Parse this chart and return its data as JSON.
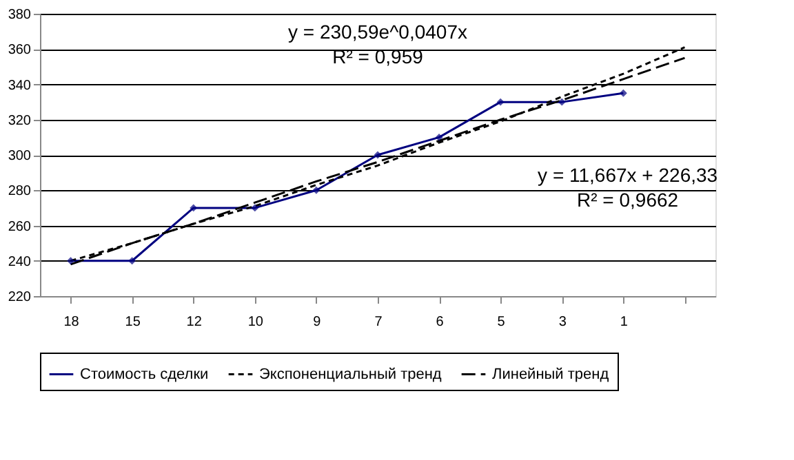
{
  "chart_data": {
    "type": "line",
    "categories": [
      "18",
      "15",
      "12",
      "10",
      "9",
      "7",
      "6",
      "5",
      "3",
      "1",
      null
    ],
    "series": [
      {
        "name": "Стоимость сделки",
        "color": "#000080",
        "values": [
          240,
          240,
          270,
          270,
          280,
          300,
          310,
          330,
          330,
          335,
          null
        ],
        "marker": "diamond",
        "line_style": "solid"
      },
      {
        "name": "Экспоненциальный тренд",
        "color": "#000000",
        "values": [
          240,
          250,
          261,
          271,
          283,
          294,
          307,
          319,
          333,
          346,
          361
        ],
        "marker": "none",
        "line_style": "dotted"
      },
      {
        "name": "Линейный тренд",
        "color": "#000000",
        "values": [
          238,
          250,
          261,
          273,
          285,
          296,
          308,
          320,
          331,
          343,
          355
        ],
        "marker": "none",
        "line_style": "dashed"
      }
    ],
    "ylim": [
      220,
      380
    ],
    "yticks": [
      220,
      240,
      260,
      280,
      300,
      320,
      340,
      360,
      380
    ],
    "grid": "y",
    "legend": "bottom",
    "annotations": [
      "y = 230,59e^0,0407x",
      "R² = 0,959",
      "y = 11,667x + 226,33",
      "R² = 0,9662"
    ]
  }
}
